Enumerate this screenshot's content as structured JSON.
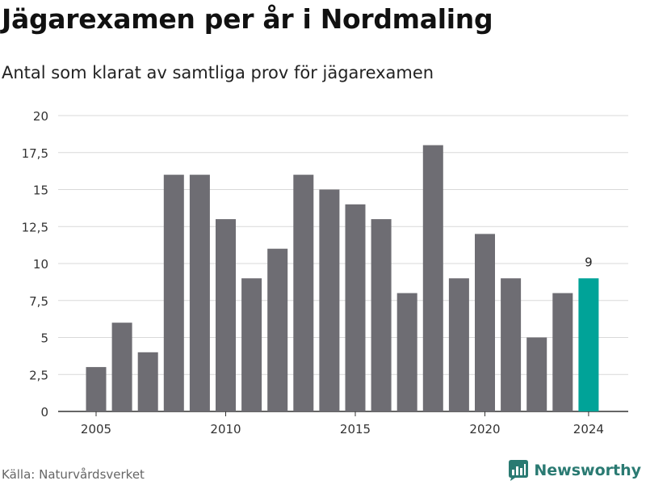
{
  "header": {
    "title": "Jägarexamen per år i Nordmaling",
    "subtitle": "Antal som klarat av samtliga prov för jägarexamen"
  },
  "footer": {
    "source": "Källa: Naturvårdsverket",
    "brand": "Newsworthy"
  },
  "colors": {
    "bar": "#6e6d73",
    "highlight": "#00a398",
    "grid": "#d9d9d9",
    "brand": "#2a7a72"
  },
  "chart_data": {
    "type": "bar",
    "title": "Jägarexamen per år i Nordmaling",
    "subtitle": "Antal som klarat av samtliga prov för jägarexamen",
    "xlabel": "",
    "ylabel": "",
    "x": [
      2005,
      2006,
      2007,
      2008,
      2009,
      2010,
      2011,
      2012,
      2013,
      2014,
      2015,
      2016,
      2017,
      2018,
      2019,
      2020,
      2021,
      2022,
      2023,
      2024
    ],
    "values": [
      3,
      6,
      4,
      16,
      16,
      13,
      9,
      11,
      16,
      15,
      14,
      13,
      8,
      18,
      9,
      12,
      9,
      5,
      8,
      9
    ],
    "highlight_index": 19,
    "highlight_label": "9",
    "ylim": [
      0,
      20
    ],
    "yticks": [
      0,
      2.5,
      5,
      7.5,
      10,
      12.5,
      15,
      17.5,
      20
    ],
    "ytick_labels": [
      "0",
      "2,5",
      "5",
      "7,5",
      "10",
      "12,5",
      "15",
      "17,5",
      "20"
    ],
    "xticks": [
      2005,
      2010,
      2015,
      2020,
      2024
    ],
    "xtick_labels": [
      "2005",
      "2010",
      "2015",
      "2020",
      "2024"
    ],
    "grid": true,
    "legend": "none"
  }
}
